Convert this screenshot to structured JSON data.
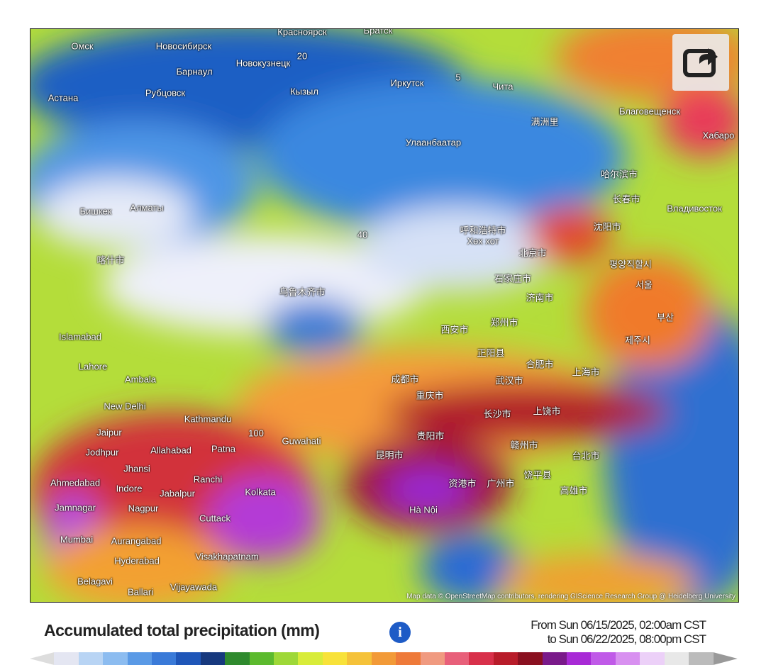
{
  "map": {
    "labels": [
      "Омск",
      "Новосибирск",
      "Красноярск",
      "Братск",
      "Барнаул",
      "Новокузнецк",
      "Рубцовск",
      "Астана",
      "Кызыл",
      "Иркутск",
      "Чита",
      "满洲里",
      "Благовещенск",
      "Хабаро",
      "Улаанбаатар",
      "哈尔滨市",
      "长春市",
      "Владивосток",
      "Бишкек",
      "Алматы",
      "呼和浩特市",
      "Хөх хот",
      "沈阳市",
      "北京市",
      "평양직할시",
      "喀什市",
      "石家庄市",
      "서울",
      "乌鲁木齐市",
      "济南市",
      "부산",
      "Islamabad",
      "西安市",
      "郑州市",
      "제주시",
      "Lahore",
      "正阳县",
      "合肥市",
      "上海市",
      "Ambala",
      "成都市",
      "武汉市",
      "重庆市",
      "New Delhi",
      "长沙市",
      "上饶市",
      "Kathmandu",
      "Jaipur",
      "贵阳市",
      "Guwahati",
      "Jodhpur",
      "Allahabad",
      "Patna",
      "赣州市",
      "台北市",
      "昆明市",
      "Jhansi",
      "Ranchi",
      "Ahmedabad",
      "Indore",
      "Jabalpur",
      "Kolkata",
      "资港市",
      "广州市",
      "饶平县",
      "高雄市",
      "Jamnagar",
      "Nagpur",
      "Hà Nội",
      "Cuttack",
      "Mumbai",
      "Aurangabad",
      "Visakhapatnam",
      "Hyderabad",
      "Belagavi",
      "Ballari",
      "Vijayawada",
      "20",
      "5",
      "40",
      "100"
    ],
    "attribution": "Map data © OpenStreetMap contributors, rendering GIScience Research Group @ Heidelberg University"
  },
  "panel": {
    "title": "Accumulated total precipitation (mm)",
    "from": "From Sun 06/15/2025, 02:00am CST",
    "to": "to Sun 06/22/2025, 08:00pm CST"
  }
}
